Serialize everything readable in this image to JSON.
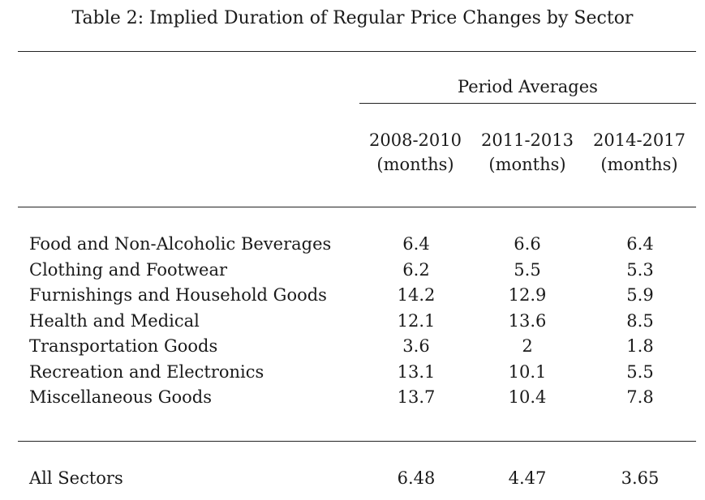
{
  "table": {
    "caption": "Table 2: Implied Duration of Regular Price Changes by Sector",
    "group_header": "Period Averages",
    "columns": [
      {
        "period": "2008-2010",
        "unit": "(months)"
      },
      {
        "period": "2011-2013",
        "unit": "(months)"
      },
      {
        "period": "2014-2017",
        "unit": "(months)"
      }
    ],
    "rows": [
      {
        "label": "Food and Non-Alcoholic Beverages",
        "values": [
          "6.4",
          "6.6",
          "6.4"
        ]
      },
      {
        "label": "Clothing and Footwear",
        "values": [
          "6.2",
          "5.5",
          "5.3"
        ]
      },
      {
        "label": "Furnishings and Household Goods",
        "values": [
          "14.2",
          "12.9",
          "5.9"
        ]
      },
      {
        "label": "Health and Medical",
        "values": [
          "12.1",
          "13.6",
          "8.5"
        ]
      },
      {
        "label": "Transportation Goods",
        "values": [
          "3.6",
          "2",
          "1.8"
        ]
      },
      {
        "label": "Recreation and Electronics",
        "values": [
          "13.1",
          "10.1",
          "5.5"
        ]
      },
      {
        "label": "Miscellaneous Goods",
        "values": [
          "13.7",
          "10.4",
          "7.8"
        ]
      }
    ],
    "summary": {
      "label": "All Sectors",
      "values": [
        "6.48",
        "4.47",
        "3.65"
      ]
    }
  }
}
